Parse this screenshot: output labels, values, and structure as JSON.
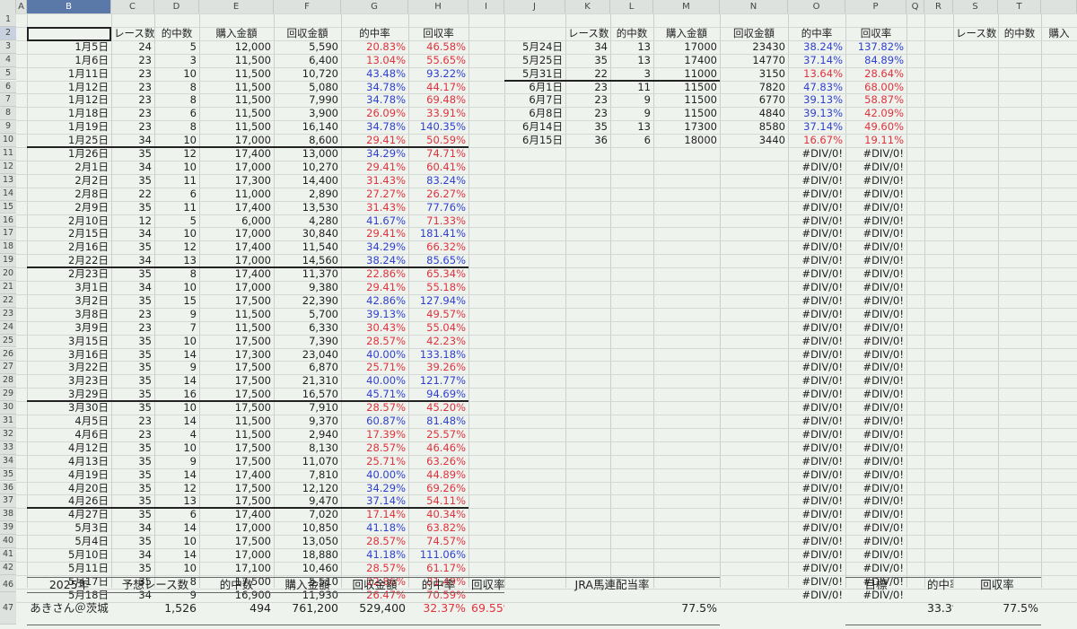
{
  "col_headers": [
    "A",
    "B",
    "C",
    "D",
    "E",
    "F",
    "G",
    "H",
    "I",
    "J",
    "K",
    "L",
    "M",
    "N",
    "O",
    "P",
    "Q",
    "R",
    "S",
    "T",
    ""
  ],
  "row_numbers": [
    "1",
    "2",
    "3",
    "4",
    "5",
    "6",
    "7",
    "8",
    "9",
    "10",
    "11",
    "12",
    "13",
    "14",
    "15",
    "16",
    "17",
    "18",
    "19",
    "20",
    "21",
    "22",
    "23",
    "24",
    "25",
    "26",
    "27",
    "28",
    "29",
    "30",
    "31",
    "32",
    "33",
    "34",
    "35",
    "36",
    "37",
    "38",
    "39",
    "40",
    "41",
    "42",
    "43",
    "44",
    "46",
    "47"
  ],
  "header_left": [
    "レース数",
    "的中数",
    "購入金額",
    "回収金額",
    "的中率",
    "回収率"
  ],
  "header_mid": [
    "レース数",
    "的中数",
    "購入金額",
    "回収金額",
    "的中率",
    "回収率"
  ],
  "header_right": [
    "レース数",
    "的中数",
    "購入"
  ],
  "left_rows": [
    [
      "1月5日",
      "24",
      "5",
      "12,000",
      "5,590",
      "20.83%",
      "46.58%"
    ],
    [
      "1月6日",
      "23",
      "3",
      "11,500",
      "6,400",
      "13.04%",
      "55.65%"
    ],
    [
      "1月11日",
      "23",
      "10",
      "11,500",
      "10,720",
      "43.48%",
      "93.22%"
    ],
    [
      "1月12日",
      "23",
      "8",
      "11,500",
      "5,080",
      "34.78%",
      "44.17%"
    ],
    [
      "1月12日",
      "23",
      "8",
      "11,500",
      "7,990",
      "34.78%",
      "69.48%"
    ],
    [
      "1月18日",
      "23",
      "6",
      "11,500",
      "3,900",
      "26.09%",
      "33.91%"
    ],
    [
      "1月19日",
      "23",
      "8",
      "11,500",
      "16,140",
      "34.78%",
      "140.35%"
    ],
    [
      "1月25日",
      "34",
      "10",
      "17,000",
      "8,600",
      "29.41%",
      "50.59%"
    ],
    [
      "1月26日",
      "35",
      "12",
      "17,400",
      "13,000",
      "34.29%",
      "74.71%"
    ],
    [
      "2月1日",
      "34",
      "10",
      "17,000",
      "10,270",
      "29.41%",
      "60.41%"
    ],
    [
      "2月2日",
      "35",
      "11",
      "17,300",
      "14,400",
      "31.43%",
      "83.24%"
    ],
    [
      "2月8日",
      "22",
      "6",
      "11,000",
      "2,890",
      "27.27%",
      "26.27%"
    ],
    [
      "2月9日",
      "35",
      "11",
      "17,400",
      "13,530",
      "31.43%",
      "77.76%"
    ],
    [
      "2月10日",
      "12",
      "5",
      "6,000",
      "4,280",
      "41.67%",
      "71.33%"
    ],
    [
      "2月15日",
      "34",
      "10",
      "17,000",
      "30,840",
      "29.41%",
      "181.41%"
    ],
    [
      "2月16日",
      "35",
      "12",
      "17,400",
      "11,540",
      "34.29%",
      "66.32%"
    ],
    [
      "2月22日",
      "34",
      "13",
      "17,000",
      "14,560",
      "38.24%",
      "85.65%"
    ],
    [
      "2月23日",
      "35",
      "8",
      "17,400",
      "11,370",
      "22.86%",
      "65.34%"
    ],
    [
      "3月1日",
      "34",
      "10",
      "17,000",
      "9,380",
      "29.41%",
      "55.18%"
    ],
    [
      "3月2日",
      "35",
      "15",
      "17,500",
      "22,390",
      "42.86%",
      "127.94%"
    ],
    [
      "3月8日",
      "23",
      "9",
      "11,500",
      "5,700",
      "39.13%",
      "49.57%"
    ],
    [
      "3月9日",
      "23",
      "7",
      "11,500",
      "6,330",
      "30.43%",
      "55.04%"
    ],
    [
      "3月15日",
      "35",
      "10",
      "17,500",
      "7,390",
      "28.57%",
      "42.23%"
    ],
    [
      "3月16日",
      "35",
      "14",
      "17,300",
      "23,040",
      "40.00%",
      "133.18%"
    ],
    [
      "3月22日",
      "35",
      "9",
      "17,500",
      "6,870",
      "25.71%",
      "39.26%"
    ],
    [
      "3月23日",
      "35",
      "14",
      "17,500",
      "21,310",
      "40.00%",
      "121.77%"
    ],
    [
      "3月29日",
      "35",
      "16",
      "17,500",
      "16,570",
      "45.71%",
      "94.69%"
    ],
    [
      "3月30日",
      "35",
      "10",
      "17,500",
      "7,910",
      "28.57%",
      "45.20%"
    ],
    [
      "4月5日",
      "23",
      "14",
      "11,500",
      "9,370",
      "60.87%",
      "81.48%"
    ],
    [
      "4月6日",
      "23",
      "4",
      "11,500",
      "2,940",
      "17.39%",
      "25.57%"
    ],
    [
      "4月12日",
      "35",
      "10",
      "17,500",
      "8,130",
      "28.57%",
      "46.46%"
    ],
    [
      "4月13日",
      "35",
      "9",
      "17,500",
      "11,070",
      "25.71%",
      "63.26%"
    ],
    [
      "4月19日",
      "35",
      "14",
      "17,400",
      "7,810",
      "40.00%",
      "44.89%"
    ],
    [
      "4月20日",
      "35",
      "12",
      "17,500",
      "12,120",
      "34.29%",
      "69.26%"
    ],
    [
      "4月26日",
      "35",
      "13",
      "17,500",
      "9,470",
      "37.14%",
      "54.11%"
    ],
    [
      "4月27日",
      "35",
      "6",
      "17,400",
      "7,020",
      "17.14%",
      "40.34%"
    ],
    [
      "5月3日",
      "34",
      "14",
      "17,000",
      "10,850",
      "41.18%",
      "63.82%"
    ],
    [
      "5月4日",
      "35",
      "10",
      "17,500",
      "13,050",
      "28.57%",
      "74.57%"
    ],
    [
      "5月10日",
      "34",
      "14",
      "17,000",
      "18,880",
      "41.18%",
      "111.06%"
    ],
    [
      "5月11日",
      "35",
      "10",
      "17,100",
      "10,460",
      "28.57%",
      "61.17%"
    ],
    [
      "5月17日",
      "35",
      "8",
      "17,500",
      "5,510",
      "22.86%",
      "31.49%"
    ],
    [
      "5月18日",
      "34",
      "9",
      "16,900",
      "11,930",
      "26.47%",
      "70.59%"
    ]
  ],
  "mid_rows": [
    [
      "5月24日",
      "34",
      "13",
      "17000",
      "23430",
      "38.24%",
      "137.82%"
    ],
    [
      "5月25日",
      "35",
      "13",
      "17400",
      "14770",
      "37.14%",
      "84.89%"
    ],
    [
      "5月31日",
      "22",
      "3",
      "11000",
      "3150",
      "13.64%",
      "28.64%"
    ],
    [
      "6月1日",
      "23",
      "11",
      "11500",
      "7820",
      "47.83%",
      "68.00%"
    ],
    [
      "6月7日",
      "23",
      "9",
      "11500",
      "6770",
      "39.13%",
      "58.87%"
    ],
    [
      "6月8日",
      "23",
      "9",
      "11500",
      "4840",
      "39.13%",
      "42.09%"
    ],
    [
      "6月14日",
      "35",
      "13",
      "17300",
      "8580",
      "37.14%",
      "49.60%"
    ],
    [
      "6月15日",
      "36",
      "6",
      "18000",
      "3440",
      "16.67%",
      "19.11%"
    ]
  ],
  "div_error": "#DIV/0!",
  "summary": {
    "year_label": "2025年",
    "races_label": "予想レース数",
    "hits_label": "的中数",
    "purchase_label": "購入金額",
    "return_label": "回収金額",
    "hit_rate_label": "的中率",
    "return_rate_label": "回収率",
    "owner": "あきさん＠茨城",
    "races": "1,526",
    "hits": "494",
    "purchase": "761,200",
    "return_amount": "529,400",
    "hit_rate": "32.37%",
    "return_rate": "69.55%",
    "jra_label": "JRA馬連配当率",
    "jra_value": "77.5%",
    "target_label": "目標",
    "target_hit_label": "的中率",
    "target_return_label": "回収率",
    "target_hit": "33.3%",
    "target_return": "77.5%"
  },
  "colors": {
    "red": "#e0323c",
    "blue": "#2f3fd0",
    "grid": "#c9cfca",
    "background": "#eef3ee"
  }
}
